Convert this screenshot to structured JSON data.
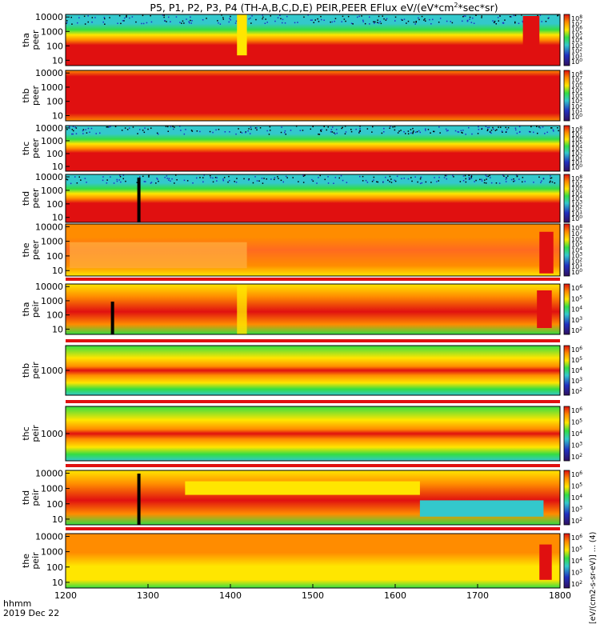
{
  "chart_data": {
    "type": "heatmap",
    "title": "P5, P1, P2, P3, P4 (TH-A,B,C,D,E) PEIR,PEER EFlux eV/(eV*cm",
    "title_sup": "2",
    "title_tail": "*sec*sr)",
    "x_axis": {
      "ticks": [
        1200,
        1300,
        1400,
        1500,
        1600,
        1700,
        1800
      ],
      "range": [
        1200,
        1800
      ],
      "label_line1": "hhmm",
      "label_line2": "2019 Dec 22"
    },
    "colorbar_label": "[eV/(cm2-s-sr-eV)] ... (4)",
    "colorbar_ticks_full": [
      "10^8",
      "10^7",
      "10^6",
      "10^5",
      "10^4",
      "10^3",
      "10^2",
      "10^1",
      "10^0"
    ],
    "colorbar_ticks_short": [
      "10^6",
      "10^5",
      "10^4",
      "10^3",
      "10^2"
    ],
    "y_ticks_standard": [
      "10000",
      "1000",
      "100",
      "10"
    ],
    "y_ticks_peir_bc": [
      "1000"
    ],
    "panels": [
      {
        "name": "tha peer",
        "label1": "tha",
        "label2": "peer",
        "y_ticks": "standard",
        "cbar": "full"
      },
      {
        "name": "thb peer",
        "label1": "thb",
        "label2": "peer",
        "y_ticks": "standard",
        "cbar": "full"
      },
      {
        "name": "thc peer",
        "label1": "thc",
        "label2": "peer",
        "y_ticks": "standard",
        "cbar": "full"
      },
      {
        "name": "thd peer",
        "label1": "thd",
        "label2": "peer",
        "y_ticks": "standard",
        "cbar": "full"
      },
      {
        "name": "the peer",
        "label1": "the",
        "label2": "peer",
        "y_ticks": "standard",
        "cbar": "full"
      },
      {
        "name": "tha peir",
        "label1": "tha",
        "label2": "peir",
        "y_ticks": "standard",
        "cbar": "short"
      },
      {
        "name": "thb peir",
        "label1": "thb",
        "label2": "peir",
        "y_ticks": "peir_bc",
        "cbar": "short"
      },
      {
        "name": "thc peir",
        "label1": "thc",
        "label2": "peir",
        "y_ticks": "peir_bc",
        "cbar": "short"
      },
      {
        "name": "thd peir",
        "label1": "thd",
        "label2": "peir",
        "y_ticks": "standard",
        "cbar": "short"
      },
      {
        "name": "the peir",
        "label1": "the",
        "label2": "peir",
        "y_ticks": "standard",
        "cbar": "short"
      }
    ],
    "colors": {
      "red": "#e01010",
      "orange": "#ff8c00",
      "yellow": "#ffe600",
      "green": "#33dd44",
      "cyan": "#33c8cc",
      "blue": "#2030c0",
      "black": "#000000"
    }
  }
}
